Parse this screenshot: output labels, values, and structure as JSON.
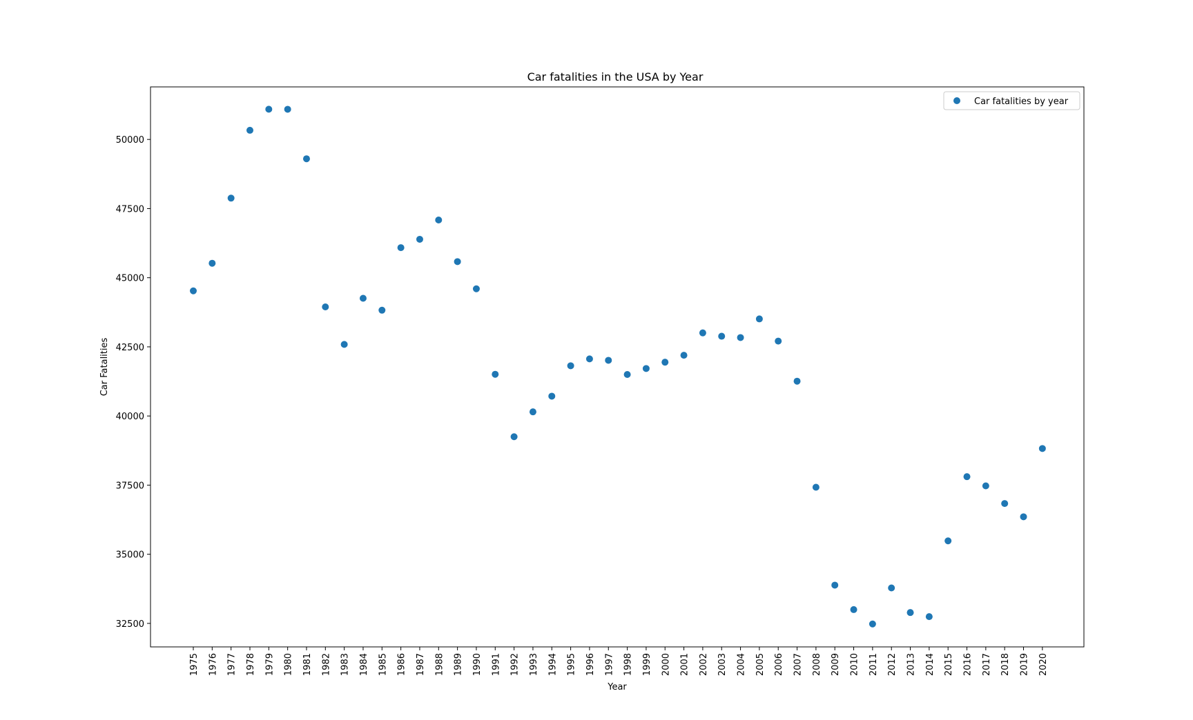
{
  "chart_data": {
    "type": "scatter",
    "title": "Car fatalities in the USA by Year",
    "xlabel": "Year",
    "ylabel": "Car Fatalities",
    "categories": [
      "1975",
      "1976",
      "1977",
      "1978",
      "1979",
      "1980",
      "1981",
      "1982",
      "1983",
      "1984",
      "1985",
      "1986",
      "1987",
      "1988",
      "1989",
      "1990",
      "1991",
      "1992",
      "1993",
      "1994",
      "1995",
      "1996",
      "1997",
      "1998",
      "1999",
      "2000",
      "2001",
      "2002",
      "2003",
      "2004",
      "2005",
      "2006",
      "2007",
      "2008",
      "2009",
      "2010",
      "2011",
      "2012",
      "2013",
      "2014",
      "2015",
      "2016",
      "2017",
      "2018",
      "2019",
      "2020"
    ],
    "series": [
      {
        "name": "Car fatalities by year",
        "color": "#1f77b4",
        "values": [
          44525,
          45523,
          47878,
          50331,
          51093,
          51091,
          49301,
          43945,
          42589,
          44257,
          43825,
          46087,
          46390,
          47087,
          45582,
          44599,
          41508,
          39250,
          40150,
          40716,
          41817,
          42065,
          42013,
          41501,
          41717,
          41945,
          42196,
          43005,
          42884,
          42836,
          43510,
          42708,
          41259,
          37423,
          33883,
          32999,
          32479,
          33782,
          32893,
          32744,
          35484,
          37806,
          37473,
          36835,
          36355,
          38824
        ]
      }
    ],
    "yticks": [
      32500,
      35000,
      37500,
      40000,
      42500,
      45000,
      47500,
      50000
    ],
    "ylim": [
      31650,
      51900
    ],
    "grid": false,
    "legend": "top-right"
  }
}
